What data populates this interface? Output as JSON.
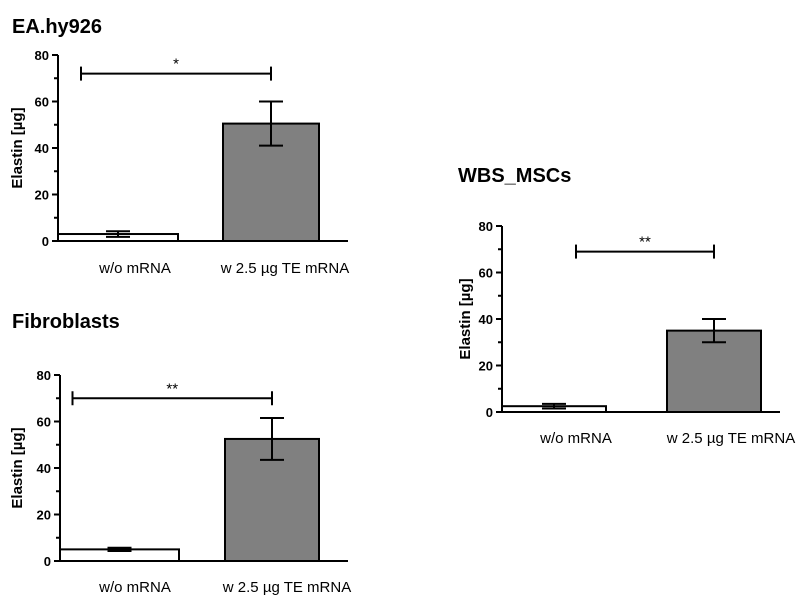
{
  "chart_data": [
    {
      "type": "bar",
      "title": "EA.hy926",
      "ylabel": "Elastin [µg]",
      "xlabel": "",
      "categories": [
        "w/o mRNA",
        "w 2.5 µg TE mRNA"
      ],
      "values": [
        3,
        50.5
      ],
      "errors": [
        1.2,
        9.5
      ],
      "bar_colors": [
        "#ffffff",
        "#808080"
      ],
      "ylim": [
        0,
        80
      ],
      "yticks": [
        "0",
        "20",
        "40",
        "60",
        "80"
      ],
      "significance": {
        "label": "*",
        "between": [
          0,
          1
        ],
        "y": 72
      },
      "grid": false
    },
    {
      "type": "bar",
      "title": "Fibroblasts",
      "ylabel": "Elastin [µg]",
      "xlabel": "",
      "categories": [
        "w/o mRNA",
        "w 2.5 µg TE mRNA"
      ],
      "values": [
        5,
        52.5
      ],
      "errors": [
        0.7,
        9
      ],
      "bar_colors": [
        "#ffffff",
        "#808080"
      ],
      "ylim": [
        0,
        80
      ],
      "yticks": [
        "0",
        "20",
        "40",
        "60",
        "80"
      ],
      "significance": {
        "label": "**",
        "between": [
          0,
          1
        ],
        "y": 70
      },
      "grid": false
    },
    {
      "type": "bar",
      "title": "WBS_MSCs",
      "ylabel": "Elastin [µg]",
      "xlabel": "",
      "categories": [
        "w/o mRNA",
        "w 2.5 µg TE mRNA"
      ],
      "values": [
        2.5,
        35
      ],
      "errors": [
        1,
        5
      ],
      "bar_colors": [
        "#ffffff",
        "#808080"
      ],
      "ylim": [
        0,
        80
      ],
      "yticks": [
        "0",
        "20",
        "40",
        "60",
        "80"
      ],
      "significance": {
        "label": "**",
        "between": [
          0,
          1
        ],
        "y": 69
      },
      "grid": false
    }
  ]
}
